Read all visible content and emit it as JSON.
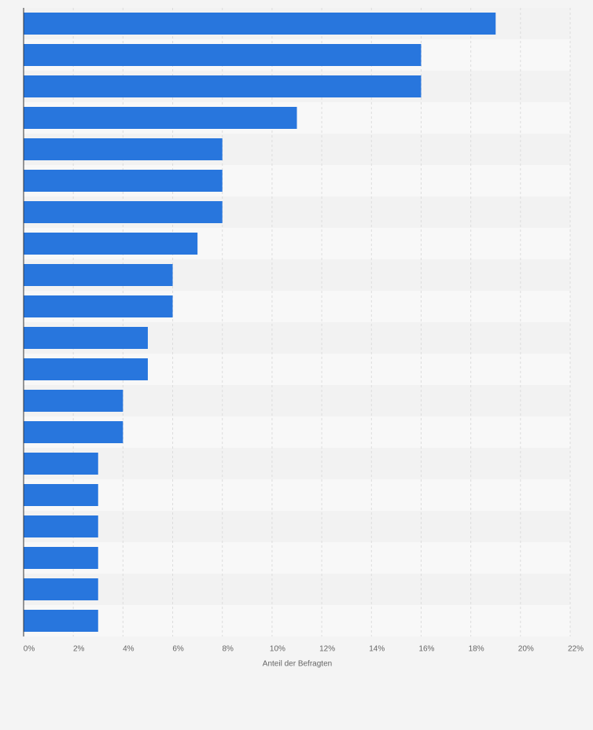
{
  "chart_data": {
    "type": "barh",
    "categories": [
      null,
      null,
      null,
      null,
      null,
      null,
      null,
      null,
      null,
      null,
      null,
      null,
      null,
      null,
      null,
      null,
      null,
      null,
      null,
      null
    ],
    "values": [
      19,
      16,
      16,
      11,
      8,
      8,
      8,
      7,
      6,
      6,
      5,
      5,
      4,
      4,
      3,
      3,
      3,
      3,
      3,
      3
    ],
    "color": "#2876dd",
    "xlim": [
      0,
      22
    ],
    "xticks": [
      {
        "value": 0,
        "label": "0%"
      },
      {
        "value": 2,
        "label": "2%"
      },
      {
        "value": 4,
        "label": "4%"
      },
      {
        "value": 6,
        "label": "6%"
      },
      {
        "value": 8,
        "label": "8%"
      },
      {
        "value": 10,
        "label": "10%"
      },
      {
        "value": 12,
        "label": "12%"
      },
      {
        "value": 14,
        "label": "14%"
      },
      {
        "value": 16,
        "label": "16%"
      },
      {
        "value": 18,
        "label": "18%"
      },
      {
        "value": 20,
        "label": "20%"
      },
      {
        "value": 22,
        "label": "22%"
      }
    ],
    "xlabel": "Anteil der Befragten",
    "grid": true
  }
}
